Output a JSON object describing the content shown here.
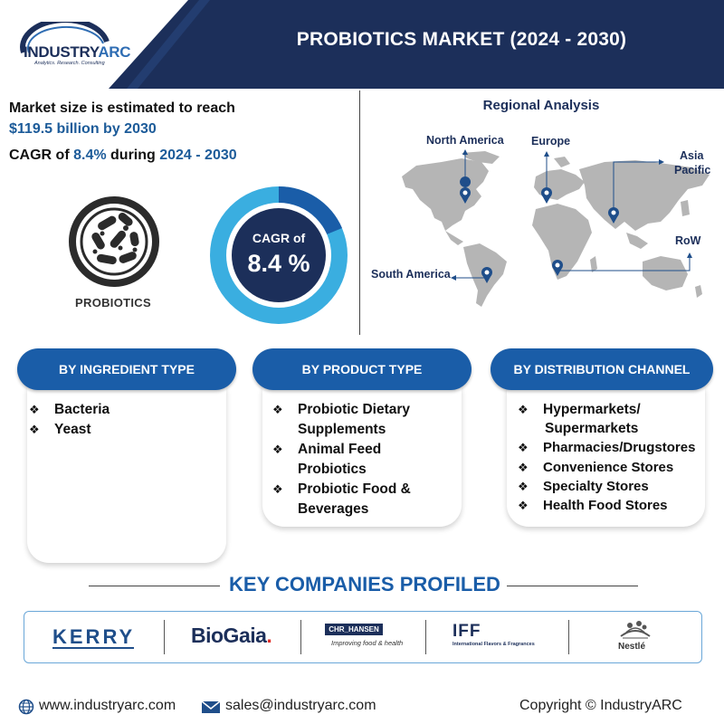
{
  "header": {
    "logo": {
      "brand_prefix": "INDUSTRY",
      "brand_suffix": "ARC",
      "tagline": "Analytics. Research. Consulting"
    },
    "title": "PROBIOTICS MARKET (2024 - 2030)",
    "colors": {
      "navy": "#1c2f5a",
      "accent": "#2f6db3"
    }
  },
  "market": {
    "line1": "Market size is estimated to reach",
    "line2": "$119.5 billion by 2030",
    "cagr_prefix": "CAGR of ",
    "cagr_value": "8.4%",
    "cagr_mid": " during ",
    "cagr_period": "2024 - 2030"
  },
  "product_icon": {
    "icon": "bacteria-petri-icon",
    "label": "PROBIOTICS"
  },
  "donut": {
    "label": "CAGR of",
    "value": "8.4 %",
    "colors": {
      "outer": "#3aaee0",
      "inner": "#1c2f5a",
      "highlight": "#1a5da8"
    }
  },
  "regional": {
    "title": "Regional Analysis",
    "regions": [
      "North America",
      "Europe",
      "Asia",
      "Pacific",
      "RoW",
      "South America"
    ]
  },
  "segments": [
    {
      "title": "BY INGREDIENT TYPE",
      "items": [
        "Bacteria",
        "Yeast"
      ]
    },
    {
      "title": "BY PRODUCT TYPE",
      "items": [
        [
          "Probiotic Dietary",
          "Supplements"
        ],
        [
          "Animal Feed",
          "Probiotics"
        ],
        [
          "Probiotic Food &",
          "Beverages"
        ]
      ]
    },
    {
      "title": "BY DISTRIBUTION CHANNEL",
      "items": [
        [
          "Hypermarkets/",
          "Supermarkets"
        ],
        "Pharmacies/Drugstores",
        "Convenience Stores",
        "Specialty Stores",
        "Health Food Stores"
      ]
    }
  ],
  "key_companies": {
    "title": "KEY COMPANIES PROFILED",
    "companies": [
      {
        "name": "KERRY"
      },
      {
        "name": "BioGaia",
        "suffix": "."
      },
      {
        "name": "CHR_HANSEN",
        "tagline": "Improving food & health"
      },
      {
        "name": "IFF",
        "tagline": "International Flavors & Fragrances"
      },
      {
        "name": "Nestlé"
      }
    ]
  },
  "footer": {
    "website": "www.industryarc.com",
    "email": "sales@industryarc.com",
    "copyright": "Copyright © IndustryARC"
  }
}
